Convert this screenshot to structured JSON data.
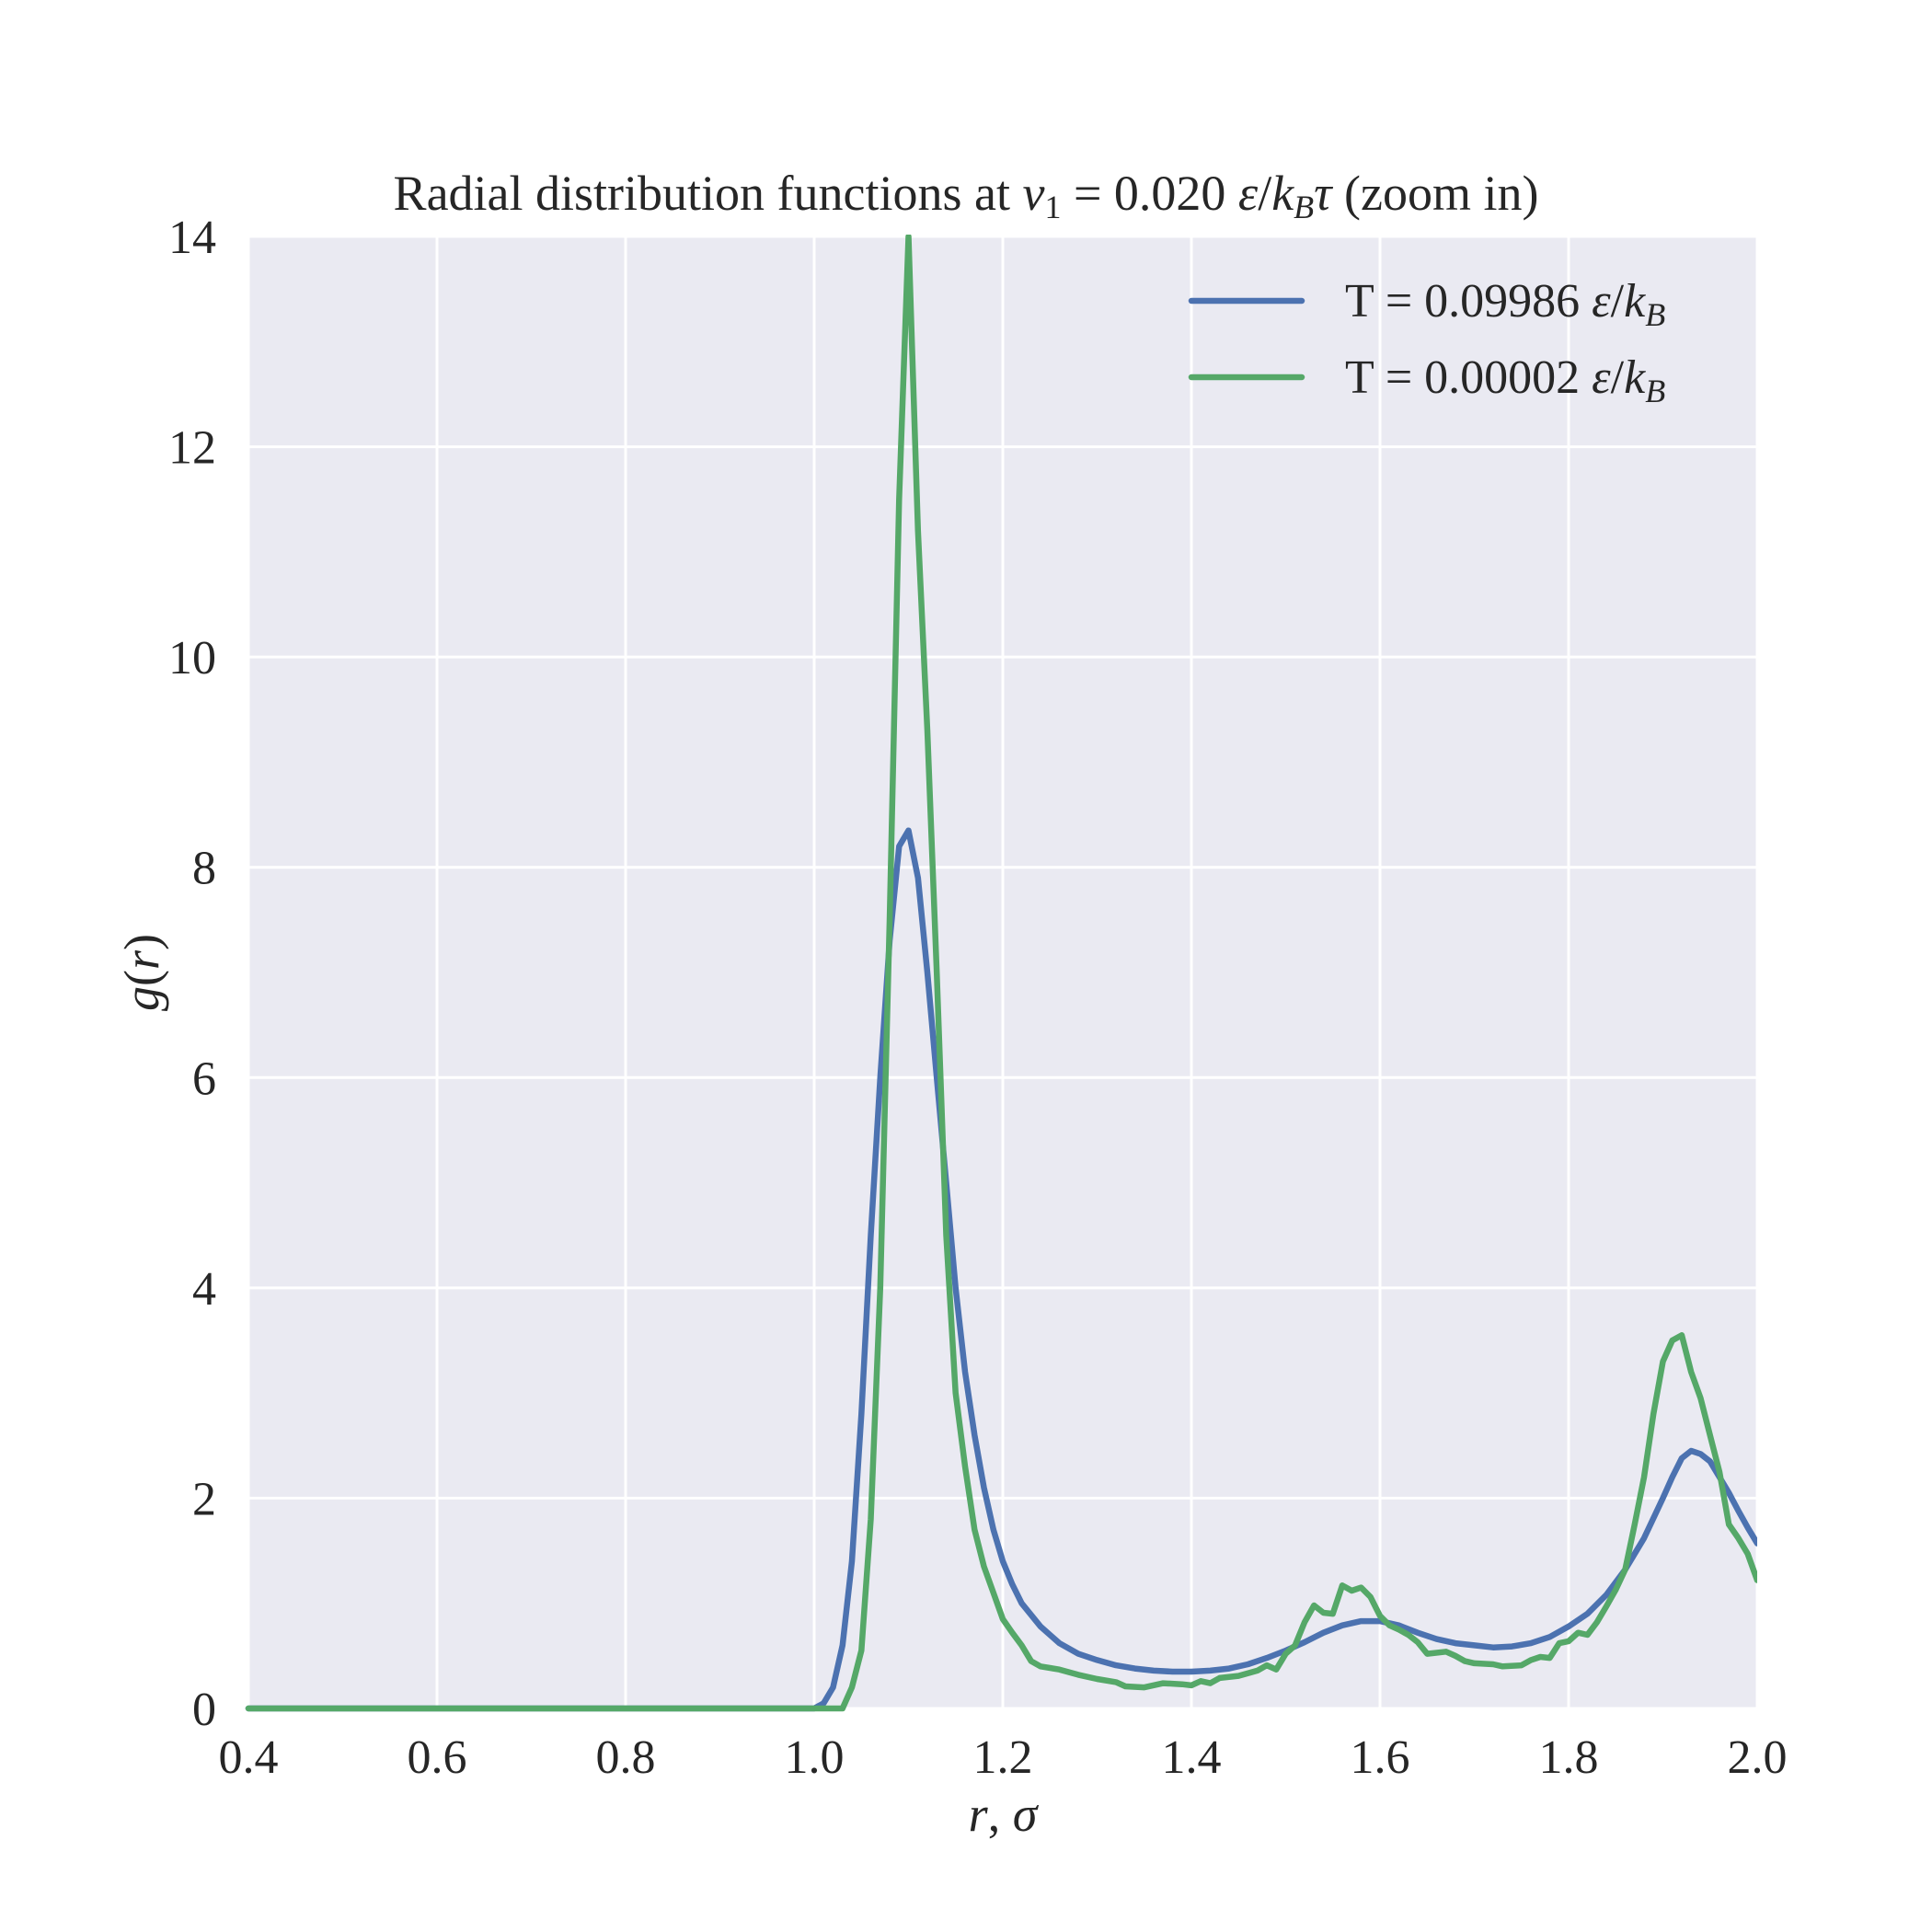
{
  "chart_data": {
    "type": "line",
    "title": {
      "prefix": "Radial distribution functions at ",
      "var": "v",
      "sub": "1",
      "eq": " = 0.020 ",
      "eps": "ε",
      "slash": "/",
      "k": "k",
      "ksub": "B",
      "tau": "τ",
      "suffix": " (zoom in)"
    },
    "xlabel": {
      "r": "r",
      "comma": ", ",
      "sigma": "σ"
    },
    "ylabel": {
      "g": "g",
      "open": "(",
      "r": "r",
      "close": ")"
    },
    "xlim": [
      0.4,
      2.0
    ],
    "ylim": [
      0,
      14
    ],
    "xticks": [
      "0.4",
      "0.6",
      "0.8",
      "1.0",
      "1.2",
      "1.4",
      "1.6",
      "1.8",
      "2.0"
    ],
    "yticks": [
      "0",
      "2",
      "4",
      "6",
      "8",
      "10",
      "12",
      "14"
    ],
    "grid": true,
    "legend_position": "top-right",
    "background": "#eaeaf2",
    "series": [
      {
        "label_prefix": "T = 0.09986 ",
        "unit_eps": "ε",
        "unit_slash": "/",
        "unit_k": "k",
        "unit_sub": "B",
        "color": "#4c72b0",
        "points": [
          [
            0.4,
            0.0
          ],
          [
            1.0,
            0.0
          ],
          [
            1.01,
            0.05
          ],
          [
            1.02,
            0.2
          ],
          [
            1.03,
            0.6
          ],
          [
            1.04,
            1.4
          ],
          [
            1.05,
            2.8
          ],
          [
            1.06,
            4.5
          ],
          [
            1.07,
            6.0
          ],
          [
            1.08,
            7.3
          ],
          [
            1.09,
            8.2
          ],
          [
            1.1,
            8.35
          ],
          [
            1.11,
            7.9
          ],
          [
            1.12,
            7.0
          ],
          [
            1.13,
            6.0
          ],
          [
            1.14,
            5.0
          ],
          [
            1.15,
            4.0
          ],
          [
            1.16,
            3.2
          ],
          [
            1.17,
            2.6
          ],
          [
            1.18,
            2.1
          ],
          [
            1.19,
            1.7
          ],
          [
            1.2,
            1.4
          ],
          [
            1.21,
            1.18
          ],
          [
            1.22,
            1.0
          ],
          [
            1.24,
            0.78
          ],
          [
            1.26,
            0.62
          ],
          [
            1.28,
            0.52
          ],
          [
            1.3,
            0.46
          ],
          [
            1.32,
            0.41
          ],
          [
            1.34,
            0.38
          ],
          [
            1.36,
            0.36
          ],
          [
            1.38,
            0.35
          ],
          [
            1.4,
            0.35
          ],
          [
            1.42,
            0.36
          ],
          [
            1.44,
            0.38
          ],
          [
            1.46,
            0.42
          ],
          [
            1.48,
            0.48
          ],
          [
            1.5,
            0.55
          ],
          [
            1.52,
            0.63
          ],
          [
            1.54,
            0.72
          ],
          [
            1.56,
            0.79
          ],
          [
            1.58,
            0.83
          ],
          [
            1.6,
            0.83
          ],
          [
            1.62,
            0.79
          ],
          [
            1.64,
            0.72
          ],
          [
            1.66,
            0.66
          ],
          [
            1.68,
            0.62
          ],
          [
            1.7,
            0.6
          ],
          [
            1.72,
            0.58
          ],
          [
            1.74,
            0.59
          ],
          [
            1.76,
            0.62
          ],
          [
            1.78,
            0.68
          ],
          [
            1.8,
            0.78
          ],
          [
            1.82,
            0.9
          ],
          [
            1.84,
            1.08
          ],
          [
            1.86,
            1.32
          ],
          [
            1.88,
            1.62
          ],
          [
            1.9,
            2.0
          ],
          [
            1.91,
            2.2
          ],
          [
            1.92,
            2.38
          ],
          [
            1.93,
            2.45
          ],
          [
            1.94,
            2.42
          ],
          [
            1.95,
            2.35
          ],
          [
            1.96,
            2.2
          ],
          [
            1.97,
            2.05
          ],
          [
            1.98,
            1.88
          ],
          [
            1.99,
            1.72
          ],
          [
            2.0,
            1.57
          ]
        ]
      },
      {
        "label_prefix": "T = 0.00002 ",
        "unit_eps": "ε",
        "unit_slash": "/",
        "unit_k": "k",
        "unit_sub": "B",
        "color": "#55a868",
        "points": [
          [
            0.4,
            0.0
          ],
          [
            1.03,
            0.0
          ],
          [
            1.04,
            0.2
          ],
          [
            1.05,
            0.55
          ],
          [
            1.06,
            1.8
          ],
          [
            1.07,
            4.0
          ],
          [
            1.08,
            7.5
          ],
          [
            1.09,
            11.5
          ],
          [
            1.1,
            14.0
          ],
          [
            1.11,
            11.2
          ],
          [
            1.12,
            9.3
          ],
          [
            1.13,
            7.0
          ],
          [
            1.14,
            4.5
          ],
          [
            1.15,
            3.0
          ],
          [
            1.16,
            2.3
          ],
          [
            1.17,
            1.7
          ],
          [
            1.18,
            1.35
          ],
          [
            1.19,
            1.1
          ],
          [
            1.2,
            0.85
          ],
          [
            1.21,
            0.72
          ],
          [
            1.22,
            0.6
          ],
          [
            1.23,
            0.45
          ],
          [
            1.24,
            0.4
          ],
          [
            1.26,
            0.37
          ],
          [
            1.28,
            0.32
          ],
          [
            1.3,
            0.28
          ],
          [
            1.32,
            0.25
          ],
          [
            1.33,
            0.21
          ],
          [
            1.35,
            0.2
          ],
          [
            1.37,
            0.24
          ],
          [
            1.39,
            0.23
          ],
          [
            1.4,
            0.22
          ],
          [
            1.41,
            0.26
          ],
          [
            1.42,
            0.24
          ],
          [
            1.43,
            0.29
          ],
          [
            1.45,
            0.31
          ],
          [
            1.47,
            0.36
          ],
          [
            1.48,
            0.41
          ],
          [
            1.49,
            0.37
          ],
          [
            1.5,
            0.52
          ],
          [
            1.51,
            0.6
          ],
          [
            1.52,
            0.82
          ],
          [
            1.53,
            0.98
          ],
          [
            1.54,
            0.91
          ],
          [
            1.55,
            0.9
          ],
          [
            1.56,
            1.17
          ],
          [
            1.57,
            1.12
          ],
          [
            1.58,
            1.15
          ],
          [
            1.59,
            1.06
          ],
          [
            1.6,
            0.88
          ],
          [
            1.61,
            0.79
          ],
          [
            1.62,
            0.75
          ],
          [
            1.63,
            0.7
          ],
          [
            1.64,
            0.63
          ],
          [
            1.65,
            0.52
          ],
          [
            1.67,
            0.54
          ],
          [
            1.68,
            0.5
          ],
          [
            1.69,
            0.45
          ],
          [
            1.7,
            0.43
          ],
          [
            1.72,
            0.42
          ],
          [
            1.73,
            0.4
          ],
          [
            1.75,
            0.41
          ],
          [
            1.76,
            0.46
          ],
          [
            1.77,
            0.49
          ],
          [
            1.78,
            0.48
          ],
          [
            1.79,
            0.62
          ],
          [
            1.8,
            0.64
          ],
          [
            1.81,
            0.72
          ],
          [
            1.82,
            0.7
          ],
          [
            1.83,
            0.82
          ],
          [
            1.84,
            0.97
          ],
          [
            1.85,
            1.13
          ],
          [
            1.86,
            1.32
          ],
          [
            1.87,
            1.75
          ],
          [
            1.88,
            2.2
          ],
          [
            1.89,
            2.8
          ],
          [
            1.9,
            3.3
          ],
          [
            1.91,
            3.5
          ],
          [
            1.92,
            3.55
          ],
          [
            1.93,
            3.2
          ],
          [
            1.94,
            2.95
          ],
          [
            1.95,
            2.6
          ],
          [
            1.96,
            2.25
          ],
          [
            1.97,
            1.75
          ],
          [
            1.98,
            1.62
          ],
          [
            1.99,
            1.47
          ],
          [
            2.0,
            1.22
          ]
        ]
      }
    ]
  }
}
